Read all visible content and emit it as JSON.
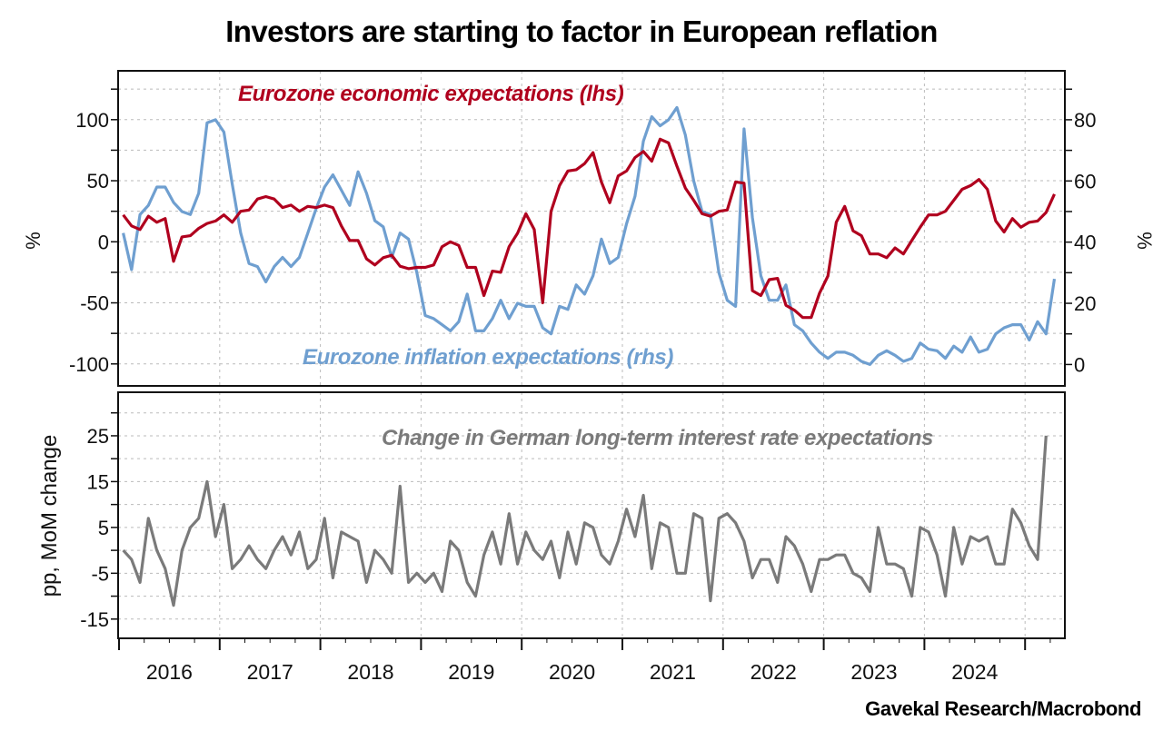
{
  "title": "Investors are starting to factor in European reflation",
  "source": "Gavekal Research/Macrobond",
  "colors": {
    "economic": "#b0001e",
    "inflation": "#6f9fd0",
    "rates": "#7a7a7a"
  },
  "chart_data": [
    {
      "type": "line",
      "panel": "top",
      "x_start": "2016-01",
      "frequency": "monthly",
      "xticks": [
        "2016",
        "2017",
        "2018",
        "2019",
        "2020",
        "2021",
        "2022",
        "2023",
        "2024"
      ],
      "ylabel_left": "%",
      "ylabel_right": "%",
      "ylim_left": [
        -118,
        140
      ],
      "ylim_right": [
        -7,
        96
      ],
      "yticks_left": [
        100,
        50,
        0,
        -50,
        -100
      ],
      "yticks_right": [
        80,
        60,
        40,
        20,
        0
      ],
      "grid": true,
      "series": [
        {
          "name": "Eurozone economic expectations (lhs)",
          "axis": "left",
          "color": "#b0001e",
          "values": [
            22,
            13,
            10,
            21,
            16,
            19,
            -16,
            4,
            5,
            11,
            15,
            17,
            22,
            16,
            25,
            26,
            35,
            37,
            35,
            28,
            30,
            25,
            29,
            28,
            30,
            28,
            13,
            1,
            1,
            -14,
            -19,
            -13,
            -11,
            -20,
            -22,
            -21,
            -21,
            -19,
            -4,
            0,
            -3,
            -21,
            -21,
            -44,
            -24,
            -25,
            -4,
            7,
            23,
            10,
            -50,
            25,
            46,
            58,
            59,
            64,
            73,
            49,
            32,
            54,
            58,
            69,
            74,
            66,
            84,
            81,
            62,
            44,
            34,
            23,
            21,
            25,
            26,
            49,
            48,
            -40,
            -44,
            -31,
            -30,
            -52,
            -56,
            -62,
            -62,
            -42,
            -28,
            16,
            29,
            9,
            5,
            -10,
            -10,
            -13,
            -5,
            -10,
            1,
            12,
            22,
            22,
            25,
            34,
            43,
            46,
            51,
            43,
            17,
            8,
            19,
            12,
            16,
            17,
            24,
            39
          ]
        },
        {
          "name": "Eurozone inflation expectations (rhs)",
          "axis": "right",
          "color": "#6f9fd0",
          "values": [
            43,
            31,
            49,
            52,
            58,
            58,
            53,
            50,
            49,
            56,
            79,
            80,
            76,
            59,
            43,
            33,
            32,
            27,
            32,
            35,
            32,
            35,
            43,
            51,
            58,
            62,
            57,
            52,
            63,
            56,
            47,
            45,
            35,
            43,
            41,
            30,
            16,
            15,
            13,
            11,
            14,
            23,
            11,
            11,
            15,
            21,
            15,
            20,
            19,
            19,
            12,
            10,
            19,
            18,
            26,
            23,
            29,
            41,
            33,
            35,
            46,
            55,
            73,
            81,
            78,
            80,
            84,
            75,
            60,
            50,
            49,
            30,
            21,
            19,
            77,
            48,
            29,
            21,
            21,
            26,
            13,
            11,
            7,
            4,
            2,
            4,
            4,
            3,
            1,
            0,
            3,
            4.5,
            3,
            1,
            2,
            7,
            5,
            4.5,
            2,
            6,
            4,
            9,
            4,
            5,
            10,
            12,
            13,
            13,
            8,
            14,
            10,
            28
          ]
        }
      ]
    },
    {
      "type": "line",
      "panel": "bottom",
      "x_start": "2016-01",
      "frequency": "monthly",
      "ylabel": "pp, MoM change",
      "ylim": [
        -19.2,
        34.5
      ],
      "yticks": [
        25,
        15,
        5,
        -5,
        -15
      ],
      "grid": true,
      "series": [
        {
          "name": "Change in German long-term interest rate expectations",
          "color": "#7a7a7a",
          "values": [
            0,
            -2,
            -7,
            7,
            0,
            -4,
            -12,
            0,
            5,
            7,
            15,
            3,
            10,
            -4,
            -2,
            1,
            -2,
            -4,
            0,
            3,
            -1,
            4,
            -4,
            -2,
            7,
            -6,
            4,
            3,
            2,
            -7,
            0,
            -2,
            -5,
            14,
            -7,
            -5,
            -7,
            -5,
            -9,
            2,
            0,
            -7,
            -10,
            -1,
            4,
            -3,
            8,
            -3,
            4,
            0,
            -2,
            2,
            -6,
            4,
            -3,
            6,
            5,
            -1,
            -3,
            2,
            9,
            3,
            12,
            -4,
            6,
            5,
            -5,
            -5,
            8,
            7,
            -11,
            7,
            8,
            6,
            2,
            -6,
            -2,
            -2,
            -7,
            3,
            1,
            -3,
            -9,
            -2,
            -2,
            -1,
            -1,
            -5,
            -6,
            -9,
            5,
            -3,
            -3,
            -4,
            -10,
            5,
            4,
            -1,
            -10,
            5,
            -3,
            3,
            2,
            3,
            -3,
            -3,
            9,
            6,
            1,
            -2,
            25
          ]
        }
      ]
    }
  ]
}
